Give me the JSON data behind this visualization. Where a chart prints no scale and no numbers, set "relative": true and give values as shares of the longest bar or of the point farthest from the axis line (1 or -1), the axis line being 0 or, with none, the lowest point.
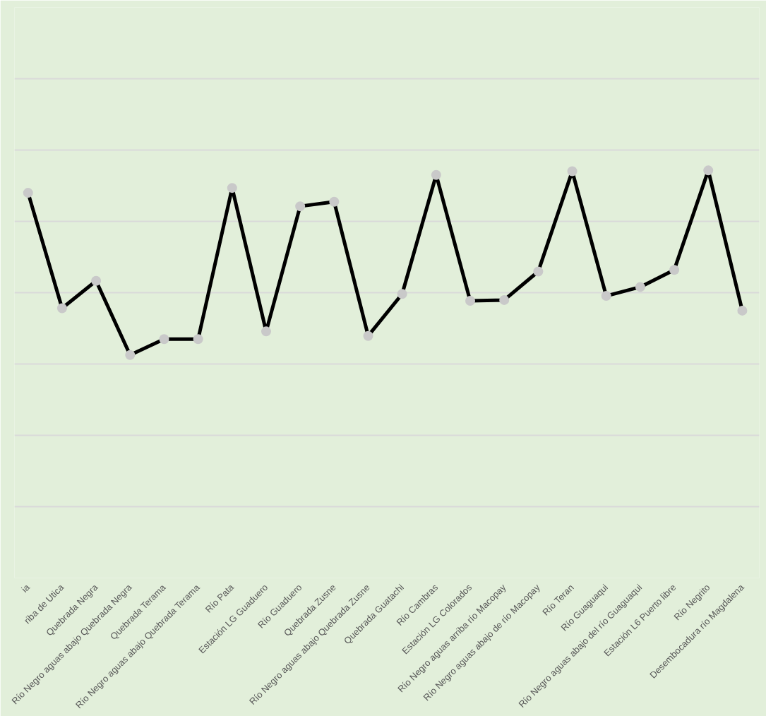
{
  "chart_data": {
    "type": "line",
    "relative": true,
    "grid": "y",
    "marker": "circle",
    "line_style": "solid",
    "categories": [
      "ia",
      "riba de Utica",
      "Quebrada Negra",
      "Río Negro aguas abajo Quebrada Negra",
      "Quebrada Terama",
      "Río Negro aguas abajo Quebrada Terama",
      "Río Pata",
      "Estación LG Guaduero",
      "Río Guaduero",
      "Quebrada Zusne",
      "Río Negro aguas abajo Quebrada Zusne",
      "Quebrada Guatachi",
      "Río Cambras",
      "Estación LG Colorados",
      "Río Negro aguas arriba río Macopay",
      "Río Negro aguas abajo de río Macopay",
      "Río Teran",
      "Río Guaguaqui",
      "Río Negro aguas abajo del río Guaguaqui",
      "Estación L6 Puerto libre",
      "Río Negrito",
      "Desembocadura río Magdalena"
    ],
    "series": [
      {
        "color": "#000000",
        "values": [
          0.945,
          0.662,
          0.729,
          0.547,
          0.586,
          0.586,
          0.957,
          0.605,
          0.912,
          0.923,
          0.594,
          0.697,
          0.989,
          0.68,
          0.682,
          0.752,
          0.998,
          0.692,
          0.714,
          0.756,
          1,
          0.656
        ]
      }
    ]
  }
}
